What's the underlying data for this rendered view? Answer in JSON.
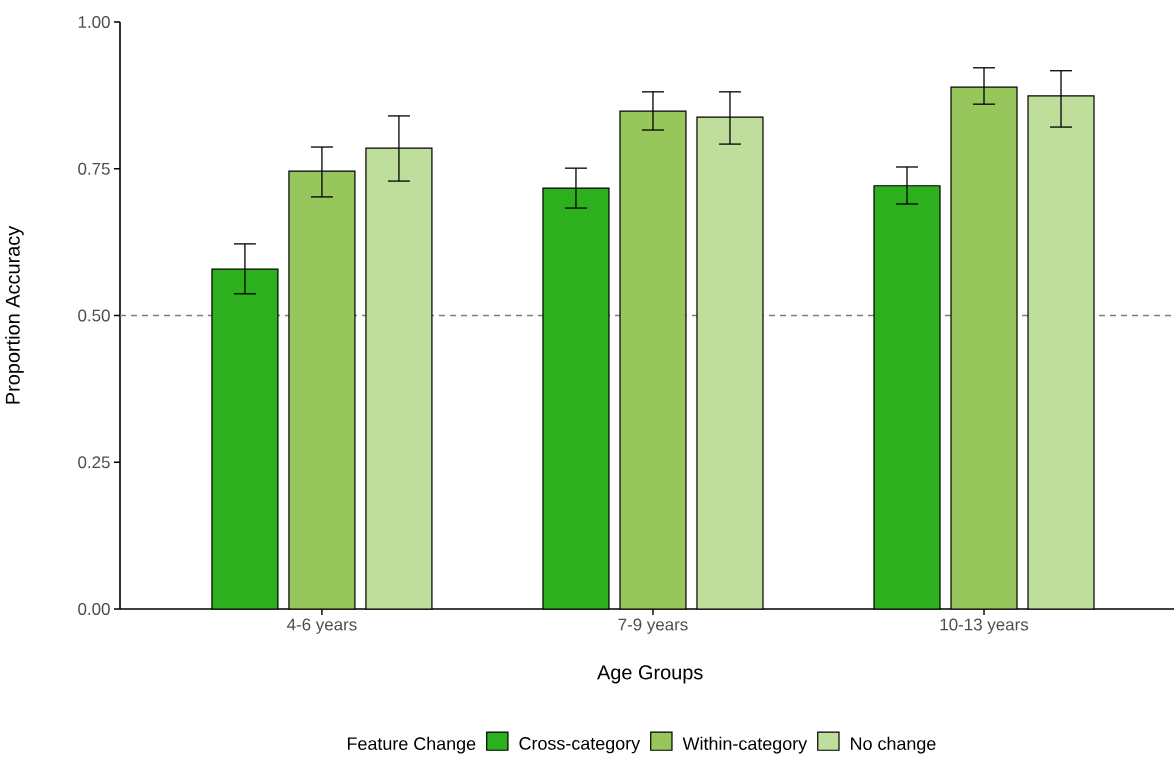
{
  "chart_data": {
    "type": "bar",
    "xlabel": "Age Groups",
    "ylabel": "Proportion Accuracy",
    "legend_title": "Feature Change",
    "legend": "bottom",
    "categories": [
      "4-6 years",
      "7-9 years",
      "10-13 years"
    ],
    "series": [
      {
        "name": "Cross-category",
        "color": "#2db01e",
        "values": [
          0.579,
          0.717,
          0.721
        ],
        "errors": [
          [
            0.537,
            0.622
          ],
          [
            0.683,
            0.751
          ],
          [
            0.69,
            0.753
          ]
        ]
      },
      {
        "name": "Within-category",
        "color": "#97c65c",
        "values": [
          0.746,
          0.848,
          0.889
        ],
        "errors": [
          [
            0.702,
            0.787
          ],
          [
            0.816,
            0.881
          ],
          [
            0.86,
            0.922
          ]
        ]
      },
      {
        "name": "No change",
        "color": "#bfde9b",
        "values": [
          0.785,
          0.838,
          0.874
        ],
        "errors": [
          [
            0.729,
            0.84
          ],
          [
            0.792,
            0.881
          ],
          [
            0.821,
            0.917
          ]
        ]
      }
    ],
    "ylim": [
      0,
      1
    ],
    "yticks": [
      {
        "value": 0,
        "label": "0.00"
      },
      {
        "value": 0.25,
        "label": "0.25"
      },
      {
        "value": 0.5,
        "label": "0.50"
      },
      {
        "value": 0.75,
        "label": "0.75"
      },
      {
        "value": 1,
        "label": "1.00"
      }
    ],
    "ref_lines": [
      {
        "axis": "y",
        "value": 0.5,
        "color": "#7f7f7f",
        "line_style": "dashed"
      }
    ]
  }
}
